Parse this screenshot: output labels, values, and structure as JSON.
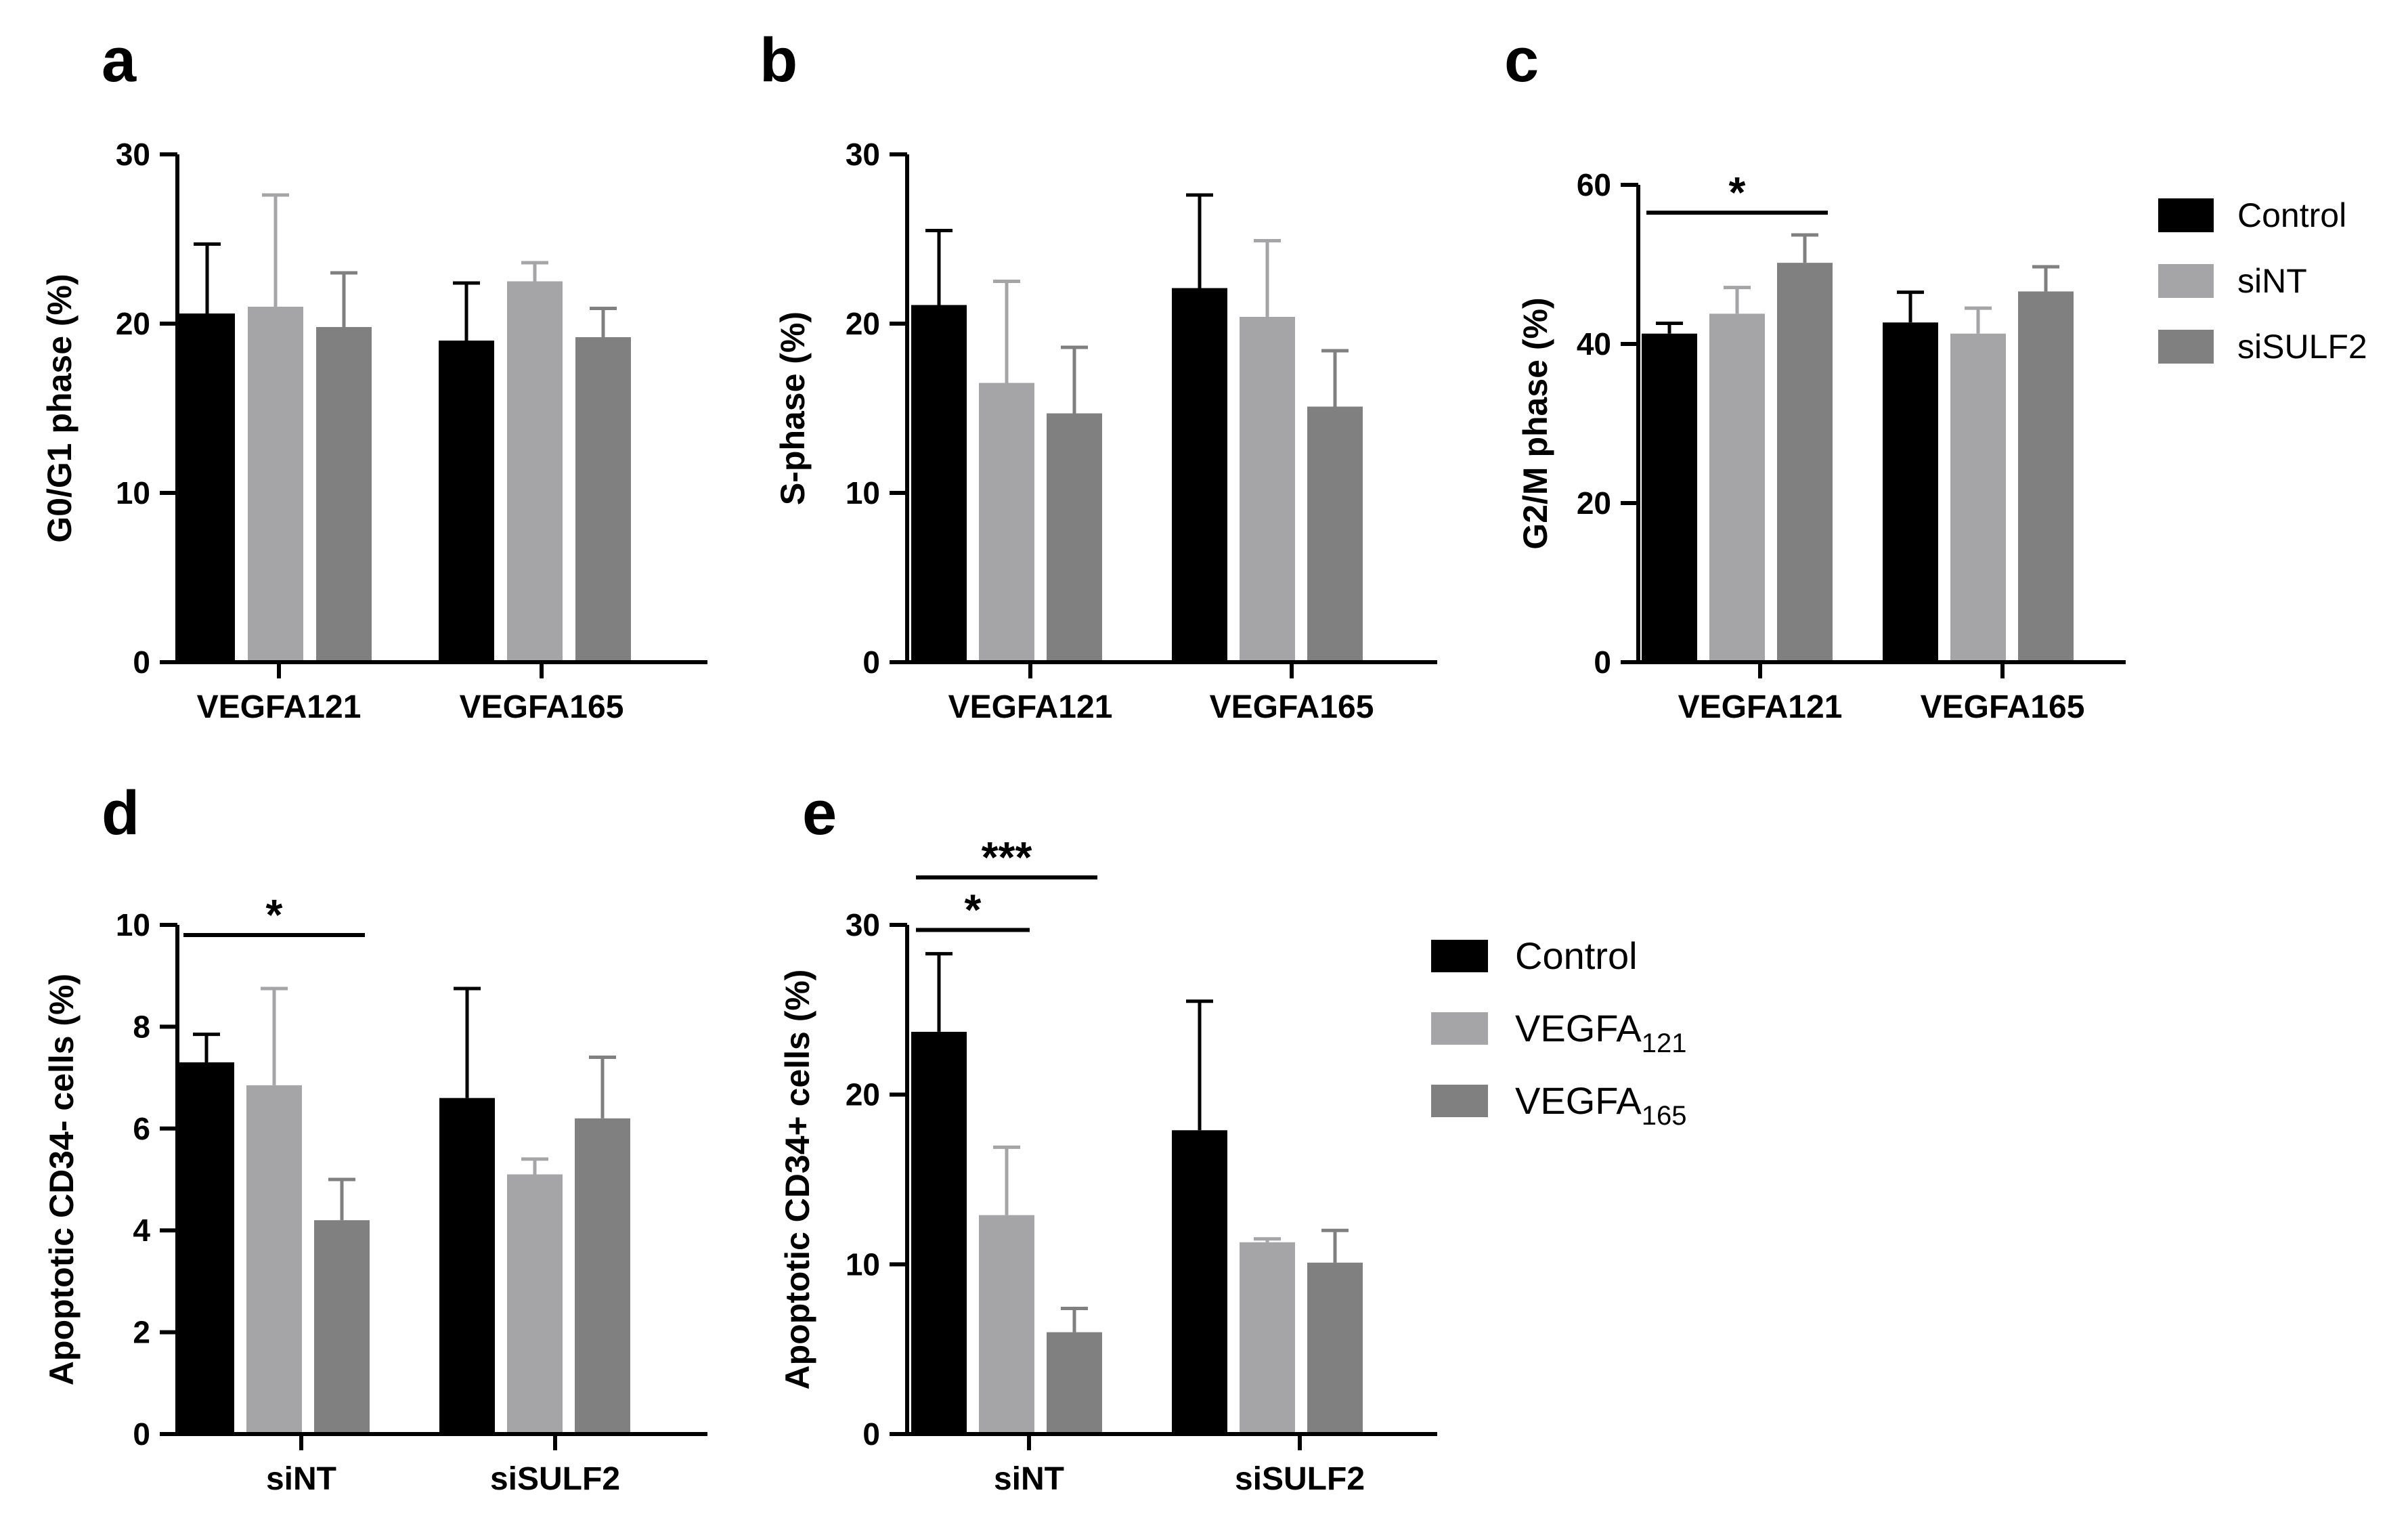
{
  "colors": {
    "control": "#000000",
    "light": "#a5a5a8",
    "dark": "#808080",
    "axis": "#000000"
  },
  "legends": {
    "top": [
      {
        "label": "Control",
        "color": "#000000"
      },
      {
        "label": "siNT",
        "color": "#a5a5a8"
      },
      {
        "label": "siSULF2",
        "color": "#808080"
      }
    ],
    "bottom": [
      {
        "label": "Control",
        "color": "#000000",
        "base": "Control",
        "sub": ""
      },
      {
        "label": "VEGFA121",
        "color": "#a5a5a8",
        "base": "VEGFA",
        "sub": "121"
      },
      {
        "label": "VEGFA165",
        "color": "#808080",
        "base": "VEGFA",
        "sub": "165"
      }
    ]
  },
  "chart_data": [
    {
      "panel": "a",
      "type": "bar",
      "ylabel": "G0/G1 phase (%)",
      "ylim": [
        0,
        30
      ],
      "yticks": [
        0,
        10,
        20,
        30
      ],
      "categories": [
        "VEGFA121",
        "VEGFA165"
      ],
      "series": [
        {
          "name": "Control",
          "values": [
            20.6,
            19.0
          ],
          "errors": [
            4.1,
            3.4
          ]
        },
        {
          "name": "siNT",
          "values": [
            21.0,
            22.5
          ],
          "errors": [
            6.6,
            1.1
          ]
        },
        {
          "name": "siSULF2",
          "values": [
            19.8,
            19.2
          ],
          "errors": [
            3.2,
            1.7
          ]
        }
      ],
      "significance": []
    },
    {
      "panel": "b",
      "type": "bar",
      "ylabel": "S-phase (%)",
      "ylim": [
        0,
        30
      ],
      "yticks": [
        0,
        10,
        20,
        30
      ],
      "categories": [
        "VEGFA121",
        "VEGFA165"
      ],
      "series": [
        {
          "name": "Control",
          "values": [
            21.1,
            22.1
          ],
          "errors": [
            4.4,
            5.5
          ]
        },
        {
          "name": "siNT",
          "values": [
            16.5,
            20.4
          ],
          "errors": [
            6.0,
            4.5
          ]
        },
        {
          "name": "siSULF2",
          "values": [
            14.7,
            15.1
          ],
          "errors": [
            3.9,
            3.3
          ]
        }
      ],
      "significance": []
    },
    {
      "panel": "c",
      "type": "bar",
      "ylabel": "G2/M phase (%)",
      "ylim": [
        0,
        60
      ],
      "yticks": [
        0,
        20,
        40,
        60
      ],
      "categories": [
        "VEGFA121",
        "VEGFA165"
      ],
      "series": [
        {
          "name": "Control",
          "values": [
            41.3,
            42.7
          ],
          "errors": [
            1.3,
            3.8
          ]
        },
        {
          "name": "siNT",
          "values": [
            43.8,
            41.3
          ],
          "errors": [
            3.3,
            3.2
          ]
        },
        {
          "name": "siSULF2",
          "values": [
            50.2,
            46.6
          ],
          "errors": [
            3.5,
            3.1
          ]
        }
      ],
      "significance": [
        {
          "label": "*",
          "category": 0,
          "from": 0,
          "to": 2,
          "y": 56.5
        }
      ]
    },
    {
      "panel": "d",
      "type": "bar",
      "ylabel": "Apoptotic CD34- cells (%)",
      "ylim": [
        0,
        10
      ],
      "yticks": [
        0,
        2,
        4,
        6,
        8,
        10
      ],
      "categories": [
        "siNT",
        "siSULF2"
      ],
      "series": [
        {
          "name": "Control",
          "values": [
            7.3,
            6.6
          ],
          "errors": [
            0.55,
            2.15
          ]
        },
        {
          "name": "VEGFA121",
          "values": [
            6.85,
            5.1
          ],
          "errors": [
            1.9,
            0.3
          ]
        },
        {
          "name": "VEGFA165",
          "values": [
            4.2,
            6.2
          ],
          "errors": [
            0.8,
            1.2
          ]
        }
      ],
      "significance": [
        {
          "label": "*",
          "category": 0,
          "from": 0,
          "to": 2,
          "y": 9.8
        }
      ]
    },
    {
      "panel": "e",
      "type": "bar",
      "ylabel": "Apoptotic CD34+ cells (%)",
      "ylim": [
        0,
        30
      ],
      "yticks": [
        0,
        10,
        20,
        30
      ],
      "categories": [
        "siNT",
        "siSULF2"
      ],
      "series": [
        {
          "name": "Control",
          "values": [
            23.7,
            17.9
          ],
          "errors": [
            4.6,
            7.6
          ]
        },
        {
          "name": "VEGFA121",
          "values": [
            12.9,
            11.3
          ],
          "errors": [
            4.0,
            0.2
          ]
        },
        {
          "name": "VEGFA165",
          "values": [
            6.0,
            10.1
          ],
          "errors": [
            1.4,
            1.9
          ]
        }
      ],
      "significance": [
        {
          "label": "*",
          "category": 0,
          "from": 0,
          "to": 1,
          "y": 29.7
        },
        {
          "label": "***",
          "category": 0,
          "from": 0,
          "to": 2,
          "y": 32.8
        }
      ]
    }
  ]
}
